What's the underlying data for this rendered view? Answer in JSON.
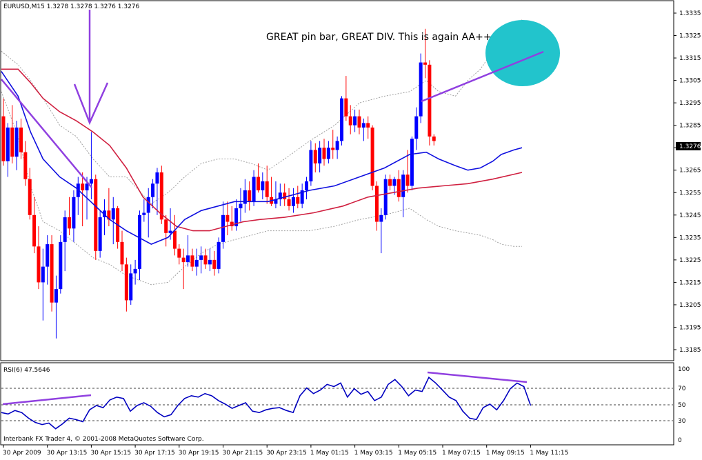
{
  "symbol_header": "EURUSD,M15  1.3278 1.3278 1.3276 1.3276",
  "annotation_text": "GREAT pin bar, GREAT DIV. This is again AA++",
  "price_axis": {
    "ticks": [
      "1.3335",
      "1.3325",
      "1.3315",
      "1.3305",
      "1.3295",
      "1.3285",
      "1.3275",
      "1.3265",
      "1.3255",
      "1.3245",
      "1.3235",
      "1.3225",
      "1.3215",
      "1.3205",
      "1.3195",
      "1.3185"
    ],
    "current_price": "1.3276"
  },
  "rsi_panel": {
    "label": "RSI(6) 47.5646",
    "levels": [
      "100",
      "70",
      "50",
      "30",
      "0"
    ],
    "footer": "Interbank FX Trader 4, © 2001-2008 MetaQuotes Software Corp."
  },
  "time_axis": [
    "30 Apr 2009",
    "30 Apr 13:15",
    "30 Apr 15:15",
    "30 Apr 17:15",
    "30 Apr 19:15",
    "30 Apr 21:15",
    "30 Apr 23:15",
    "1 May 01:15",
    "1 May 03:15",
    "1 May 05:15",
    "1 May 07:15",
    "1 May 09:15",
    "1 May 11:15"
  ],
  "colors": {
    "bull": "#0000ff",
    "bear": "#ff0000",
    "ma_fast": "#1010e0",
    "ma_slow": "#d02040",
    "bands": "#a0a0a0",
    "annotation": "#9040e0",
    "highlight": "#22c4cc"
  },
  "chart_data": {
    "type": "candlestick",
    "y_unit": "price",
    "ylim": [
      1.318,
      1.334
    ],
    "rsi_ylim": [
      0,
      100
    ],
    "candles": [
      [
        1.3289,
        1.3297,
        1.3267,
        1.3269
      ],
      [
        1.3269,
        1.3286,
        1.3262,
        1.3284
      ],
      [
        1.3284,
        1.3294,
        1.3268,
        1.3271
      ],
      [
        1.3271,
        1.3287,
        1.3265,
        1.3284
      ],
      [
        1.3284,
        1.3288,
        1.327,
        1.3273
      ],
      [
        1.3273,
        1.3278,
        1.3258,
        1.3261
      ],
      [
        1.3261,
        1.3266,
        1.3243,
        1.3245
      ],
      [
        1.3245,
        1.3253,
        1.3228,
        1.3231
      ],
      [
        1.3231,
        1.324,
        1.3212,
        1.3215
      ],
      [
        1.3215,
        1.323,
        1.3198,
        1.3222
      ],
      [
        1.3222,
        1.3236,
        1.3214,
        1.3232
      ],
      [
        1.3232,
        1.3236,
        1.3202,
        1.3206
      ],
      [
        1.3206,
        1.3218,
        1.319,
        1.3212
      ],
      [
        1.3212,
        1.3236,
        1.321,
        1.3233
      ],
      [
        1.3233,
        1.3247,
        1.322,
        1.3244
      ],
      [
        1.3244,
        1.3253,
        1.3236,
        1.3239
      ],
      [
        1.3239,
        1.3256,
        1.3233,
        1.3253
      ],
      [
        1.3253,
        1.3262,
        1.3245,
        1.3259
      ],
      [
        1.3259,
        1.3264,
        1.324,
        1.3256
      ],
      [
        1.3256,
        1.3262,
        1.3243,
        1.3259
      ],
      [
        1.3259,
        1.3282,
        1.3252,
        1.3261
      ],
      [
        1.3261,
        1.3263,
        1.3225,
        1.3229
      ],
      [
        1.3229,
        1.3247,
        1.3226,
        1.3244
      ],
      [
        1.3244,
        1.3252,
        1.3236,
        1.3247
      ],
      [
        1.3247,
        1.3257,
        1.324,
        1.3243
      ],
      [
        1.3243,
        1.3253,
        1.3232,
        1.3248
      ],
      [
        1.3248,
        1.3249,
        1.323,
        1.3233
      ],
      [
        1.3233,
        1.3238,
        1.322,
        1.3223
      ],
      [
        1.3223,
        1.3226,
        1.3202,
        1.3207
      ],
      [
        1.3207,
        1.3223,
        1.3205,
        1.3219
      ],
      [
        1.3219,
        1.3225,
        1.3214,
        1.3221
      ],
      [
        1.3221,
        1.3247,
        1.3216,
        1.3245
      ],
      [
        1.3245,
        1.3252,
        1.3242,
        1.3246
      ],
      [
        1.3246,
        1.3257,
        1.3235,
        1.3253
      ],
      [
        1.3253,
        1.3261,
        1.3248,
        1.3259
      ],
      [
        1.3259,
        1.3266,
        1.3245,
        1.3264
      ],
      [
        1.3264,
        1.3267,
        1.3241,
        1.3243
      ],
      [
        1.3243,
        1.3245,
        1.3231,
        1.3237
      ],
      [
        1.3237,
        1.3248,
        1.3234,
        1.3238
      ],
      [
        1.3238,
        1.3245,
        1.3227,
        1.323
      ],
      [
        1.323,
        1.3232,
        1.3223,
        1.3226
      ],
      [
        1.3226,
        1.323,
        1.3212,
        1.3224
      ],
      [
        1.3224,
        1.3236,
        1.3222,
        1.3227
      ],
      [
        1.3227,
        1.323,
        1.322,
        1.3222
      ],
      [
        1.3222,
        1.323,
        1.3218,
        1.3225
      ],
      [
        1.3225,
        1.3231,
        1.3219,
        1.3227
      ],
      [
        1.3227,
        1.323,
        1.3221,
        1.3223
      ],
      [
        1.3223,
        1.323,
        1.322,
        1.3225
      ],
      [
        1.3225,
        1.3229,
        1.3218,
        1.3221
      ],
      [
        1.3221,
        1.3235,
        1.3219,
        1.3233
      ],
      [
        1.3233,
        1.3251,
        1.323,
        1.3245
      ],
      [
        1.3245,
        1.3251,
        1.3236,
        1.3242
      ],
      [
        1.3242,
        1.3249,
        1.3238,
        1.324
      ],
      [
        1.324,
        1.3252,
        1.3238,
        1.3248
      ],
      [
        1.3248,
        1.3257,
        1.3242,
        1.325
      ],
      [
        1.325,
        1.3261,
        1.3246,
        1.3256
      ],
      [
        1.3256,
        1.326,
        1.3247,
        1.3251
      ],
      [
        1.3251,
        1.3265,
        1.3249,
        1.3262
      ],
      [
        1.3262,
        1.3268,
        1.3255,
        1.3256
      ],
      [
        1.3256,
        1.3264,
        1.3252,
        1.326
      ],
      [
        1.326,
        1.3267,
        1.325,
        1.3253
      ],
      [
        1.3253,
        1.3262,
        1.3249,
        1.325
      ],
      [
        1.325,
        1.326,
        1.3248,
        1.3252
      ],
      [
        1.3252,
        1.3259,
        1.3249,
        1.3255
      ],
      [
        1.3255,
        1.3259,
        1.3249,
        1.3252
      ],
      [
        1.3252,
        1.3257,
        1.3247,
        1.3249
      ],
      [
        1.3249,
        1.3257,
        1.3246,
        1.3253
      ],
      [
        1.3253,
        1.3258,
        1.3248,
        1.325
      ],
      [
        1.325,
        1.3259,
        1.3248,
        1.3256
      ],
      [
        1.3256,
        1.3262,
        1.3252,
        1.326
      ],
      [
        1.326,
        1.3278,
        1.3258,
        1.3274
      ],
      [
        1.3274,
        1.3277,
        1.3264,
        1.3268
      ],
      [
        1.3268,
        1.3278,
        1.3264,
        1.3275
      ],
      [
        1.3275,
        1.3279,
        1.3267,
        1.327
      ],
      [
        1.327,
        1.3278,
        1.3268,
        1.3275
      ],
      [
        1.3275,
        1.3283,
        1.327,
        1.3274
      ],
      [
        1.3274,
        1.328,
        1.327,
        1.3278
      ],
      [
        1.3278,
        1.3298,
        1.3276,
        1.3297
      ],
      [
        1.3297,
        1.3307,
        1.3287,
        1.3289
      ],
      [
        1.3289,
        1.3294,
        1.3281,
        1.3285
      ],
      [
        1.3285,
        1.3292,
        1.3282,
        1.3289
      ],
      [
        1.3289,
        1.3292,
        1.3281,
        1.3284
      ],
      [
        1.3284,
        1.3288,
        1.3278,
        1.3286
      ],
      [
        1.3286,
        1.3289,
        1.3279,
        1.3284
      ],
      [
        1.3284,
        1.3285,
        1.3256,
        1.3258
      ],
      [
        1.3258,
        1.326,
        1.3238,
        1.3242
      ],
      [
        1.3242,
        1.3248,
        1.3228,
        1.3245
      ],
      [
        1.3245,
        1.3263,
        1.3243,
        1.3261
      ],
      [
        1.3261,
        1.3263,
        1.3256,
        1.3258
      ],
      [
        1.3258,
        1.3262,
        1.3254,
        1.3261
      ],
      [
        1.3261,
        1.3265,
        1.3251,
        1.3253
      ],
      [
        1.3253,
        1.3265,
        1.3244,
        1.3263
      ],
      [
        1.3263,
        1.3274,
        1.3255,
        1.3258
      ],
      [
        1.3258,
        1.328,
        1.3256,
        1.3279
      ],
      [
        1.3279,
        1.3293,
        1.3274,
        1.3289
      ],
      [
        1.3289,
        1.3317,
        1.3286,
        1.3313
      ],
      [
        1.3313,
        1.3328,
        1.3306,
        1.3312
      ],
      [
        1.3312,
        1.3314,
        1.3276,
        1.328
      ],
      [
        1.328,
        1.3281,
        1.3276,
        1.3278
      ]
    ],
    "ma_fast": [
      [
        0,
        1.3309
      ],
      [
        8,
        1.3298
      ],
      [
        14,
        1.3282
      ],
      [
        20,
        1.327
      ],
      [
        28,
        1.3262
      ],
      [
        36,
        1.3257
      ],
      [
        44,
        1.325
      ],
      [
        52,
        1.3243
      ],
      [
        60,
        1.3238
      ],
      [
        72,
        1.3232
      ],
      [
        80,
        1.3235
      ],
      [
        88,
        1.3243
      ],
      [
        96,
        1.3247
      ],
      [
        104,
        1.3249
      ],
      [
        112,
        1.3251
      ],
      [
        120,
        1.3251
      ],
      [
        128,
        1.3251
      ],
      [
        136,
        1.3253
      ],
      [
        148,
        1.3256
      ],
      [
        160,
        1.3258
      ],
      [
        172,
        1.3262
      ],
      [
        184,
        1.3266
      ],
      [
        196,
        1.3272
      ],
      [
        204,
        1.3273
      ],
      [
        210,
        1.327
      ],
      [
        218,
        1.3267
      ],
      [
        224,
        1.3265
      ],
      [
        230,
        1.3266
      ],
      [
        236,
        1.3269
      ],
      [
        240,
        1.3272
      ],
      [
        246,
        1.3274
      ],
      [
        250,
        1.3275
      ]
    ],
    "ma_slow": [
      [
        0,
        1.331
      ],
      [
        8,
        1.331
      ],
      [
        14,
        1.3304
      ],
      [
        20,
        1.3297
      ],
      [
        28,
        1.3291
      ],
      [
        36,
        1.3287
      ],
      [
        44,
        1.3282
      ],
      [
        52,
        1.3276
      ],
      [
        60,
        1.3266
      ],
      [
        68,
        1.3253
      ],
      [
        76,
        1.3246
      ],
      [
        84,
        1.324
      ],
      [
        92,
        1.3238
      ],
      [
        100,
        1.3238
      ],
      [
        108,
        1.324
      ],
      [
        116,
        1.3242
      ],
      [
        124,
        1.3243
      ],
      [
        136,
        1.3244
      ],
      [
        150,
        1.3246
      ],
      [
        164,
        1.3249
      ],
      [
        176,
        1.3253
      ],
      [
        188,
        1.3255
      ],
      [
        200,
        1.3257
      ],
      [
        212,
        1.3258
      ],
      [
        224,
        1.3259
      ],
      [
        236,
        1.3261
      ],
      [
        250,
        1.3264
      ]
    ],
    "band_upper": [
      [
        0,
        1.3318
      ],
      [
        8,
        1.3312
      ],
      [
        14,
        1.3305
      ],
      [
        20,
        1.3297
      ],
      [
        28,
        1.3285
      ],
      [
        36,
        1.328
      ],
      [
        44,
        1.327
      ],
      [
        52,
        1.3262
      ],
      [
        60,
        1.3262
      ],
      [
        72,
        1.325
      ],
      [
        80,
        1.3255
      ],
      [
        88,
        1.3262
      ],
      [
        96,
        1.3268
      ],
      [
        104,
        1.327
      ],
      [
        112,
        1.327
      ],
      [
        120,
        1.3268
      ],
      [
        128,
        1.3265
      ],
      [
        136,
        1.327
      ],
      [
        148,
        1.3278
      ],
      [
        160,
        1.3285
      ],
      [
        172,
        1.3295
      ],
      [
        184,
        1.3298
      ],
      [
        196,
        1.33
      ],
      [
        204,
        1.3305
      ],
      [
        210,
        1.33
      ],
      [
        218,
        1.3298
      ],
      [
        224,
        1.3305
      ],
      [
        230,
        1.331
      ],
      [
        236,
        1.3318
      ],
      [
        240,
        1.3325
      ],
      [
        246,
        1.333
      ],
      [
        250,
        1.3332
      ]
    ],
    "band_lower": [
      [
        0,
        1.33
      ],
      [
        8,
        1.328
      ],
      [
        14,
        1.3258
      ],
      [
        20,
        1.3242
      ],
      [
        28,
        1.3238
      ],
      [
        36,
        1.3232
      ],
      [
        44,
        1.3226
      ],
      [
        52,
        1.3223
      ],
      [
        60,
        1.3218
      ],
      [
        72,
        1.3214
      ],
      [
        80,
        1.3215
      ],
      [
        88,
        1.3222
      ],
      [
        96,
        1.3228
      ],
      [
        104,
        1.3232
      ],
      [
        112,
        1.3234
      ],
      [
        120,
        1.3236
      ],
      [
        128,
        1.3238
      ],
      [
        136,
        1.3238
      ],
      [
        148,
        1.3238
      ],
      [
        160,
        1.324
      ],
      [
        172,
        1.3243
      ],
      [
        184,
        1.3245
      ],
      [
        196,
        1.3248
      ],
      [
        204,
        1.3243
      ],
      [
        210,
        1.324
      ],
      [
        218,
        1.3238
      ],
      [
        224,
        1.3237
      ],
      [
        230,
        1.3236
      ],
      [
        236,
        1.3234
      ],
      [
        240,
        1.3232
      ],
      [
        246,
        1.3231
      ],
      [
        250,
        1.3231
      ]
    ],
    "rsi": [
      [
        0,
        38
      ],
      [
        4,
        36
      ],
      [
        8,
        41
      ],
      [
        12,
        38
      ],
      [
        16,
        30
      ],
      [
        20,
        24
      ],
      [
        24,
        21
      ],
      [
        28,
        23
      ],
      [
        32,
        15
      ],
      [
        36,
        22
      ],
      [
        40,
        30
      ],
      [
        44,
        28
      ],
      [
        48,
        25
      ],
      [
        52,
        42
      ],
      [
        56,
        48
      ],
      [
        60,
        45
      ],
      [
        64,
        56
      ],
      [
        68,
        60
      ],
      [
        72,
        58
      ],
      [
        76,
        40
      ],
      [
        80,
        48
      ],
      [
        84,
        52
      ],
      [
        88,
        47
      ],
      [
        92,
        38
      ],
      [
        96,
        32
      ],
      [
        100,
        35
      ],
      [
        104,
        48
      ],
      [
        108,
        58
      ],
      [
        112,
        62
      ],
      [
        116,
        60
      ],
      [
        120,
        65
      ],
      [
        124,
        62
      ],
      [
        128,
        55
      ],
      [
        132,
        50
      ],
      [
        136,
        44
      ],
      [
        140,
        48
      ],
      [
        144,
        52
      ],
      [
        148,
        40
      ],
      [
        152,
        38
      ],
      [
        156,
        42
      ],
      [
        160,
        44
      ],
      [
        164,
        45
      ],
      [
        168,
        41
      ],
      [
        172,
        38
      ],
      [
        176,
        62
      ],
      [
        180,
        73
      ],
      [
        184,
        65
      ],
      [
        188,
        70
      ],
      [
        192,
        78
      ],
      [
        196,
        75
      ],
      [
        200,
        80
      ],
      [
        204,
        60
      ],
      [
        208,
        72
      ],
      [
        212,
        64
      ],
      [
        216,
        68
      ],
      [
        220,
        55
      ],
      [
        224,
        60
      ],
      [
        228,
        78
      ],
      [
        232,
        85
      ],
      [
        236,
        75
      ],
      [
        240,
        62
      ],
      [
        244,
        70
      ],
      [
        248,
        68
      ],
      [
        252,
        88
      ],
      [
        256,
        80
      ],
      [
        260,
        70
      ],
      [
        264,
        60
      ],
      [
        268,
        55
      ],
      [
        272,
        40
      ],
      [
        276,
        30
      ],
      [
        280,
        28
      ],
      [
        284,
        45
      ],
      [
        288,
        50
      ],
      [
        292,
        42
      ],
      [
        296,
        55
      ],
      [
        300,
        72
      ],
      [
        304,
        80
      ],
      [
        308,
        75
      ],
      [
        312,
        48
      ]
    ]
  }
}
